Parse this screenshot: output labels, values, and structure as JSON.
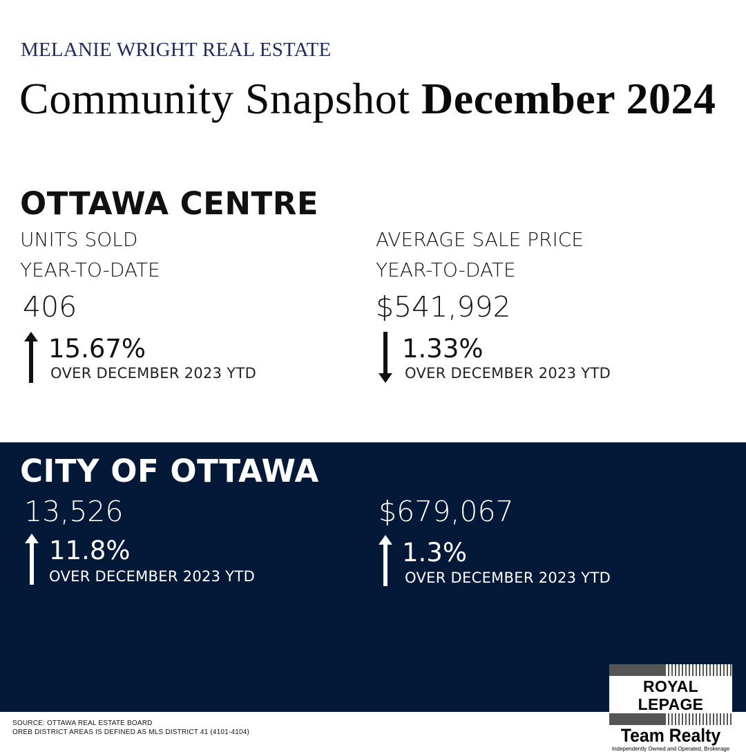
{
  "brand": "MELANIE WRIGHT REAL ESTATE",
  "headline": {
    "regular": "Community Snapshot",
    "bold": "December 2024"
  },
  "centre": {
    "title": "OTTAWA CENTRE",
    "units": {
      "label": "UNITS SOLD",
      "sublabel": "YEAR-TO-DATE",
      "value": "406",
      "change": "15.67%",
      "direction": "up",
      "note": "OVER DECEMBER 2023 YTD"
    },
    "price": {
      "label": "AVERAGE SALE PRICE",
      "sublabel": "YEAR-TO-DATE",
      "value": "$541,992",
      "change": "1.33%",
      "direction": "down",
      "note": "OVER DECEMBER 2023 YTD"
    }
  },
  "city": {
    "title": "CITY OF OTTAWA",
    "units": {
      "value": "13,526",
      "change": "11.8%",
      "direction": "up",
      "note": "OVER DECEMBER 2023 YTD"
    },
    "price": {
      "value": "$679,067",
      "change": "1.3%",
      "direction": "up",
      "note": "OVER DECEMBER 2023 YTD"
    }
  },
  "footer": {
    "source": "SOURCE: OTTAWA REAL ESTATE BOARD",
    "district": "OREB DISTRICT AREAS IS DEFINED AS MLS DISTRICT 41 (4101-4104)"
  },
  "logo": {
    "line1": "ROYAL LEPAGE",
    "line2": "Team Realty",
    "line3": "Independently Owned and Operated, Brokerage"
  },
  "colors": {
    "navy": "#041838",
    "brand_text": "#1f2a5a"
  }
}
